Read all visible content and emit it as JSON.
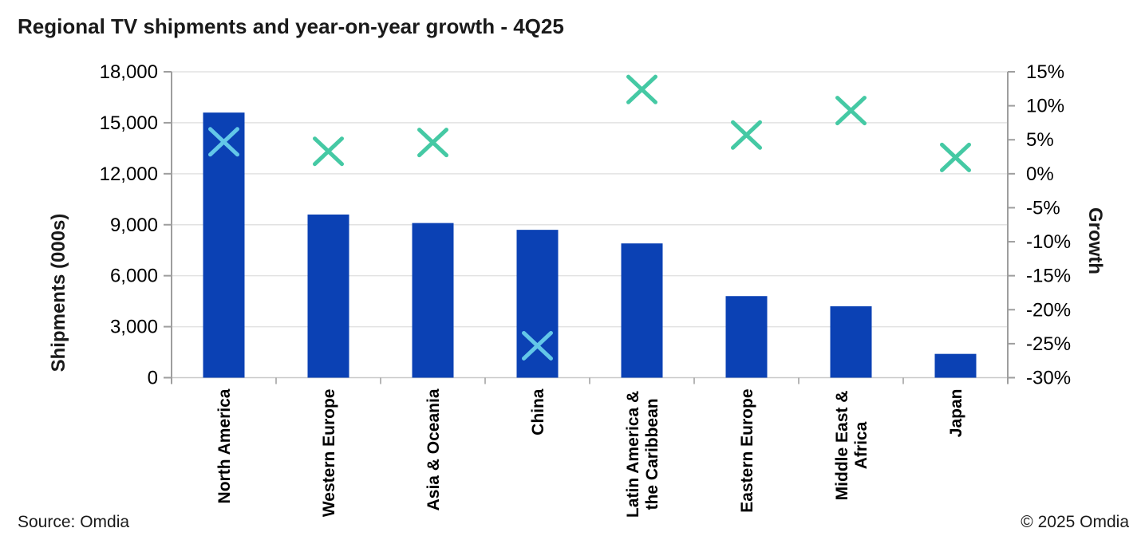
{
  "title": "Regional TV shipments and year-on-year growth - 4Q25",
  "source": "Source: Omdia",
  "copyright": "© 2025 Omdia",
  "chart_data": {
    "type": "bar",
    "title": "Regional TV shipments and year-on-year growth - 4Q25",
    "categories": [
      "North America",
      "Western Europe",
      "Asia & Oceania",
      "China",
      "Latin America &\nthe Caribbean",
      "Eastern Europe",
      "Middle East &\nAfrica",
      "Japan"
    ],
    "series": [
      {
        "name": "Shipments (000s)",
        "type": "bar",
        "axis": "left",
        "values": [
          15600,
          9600,
          9100,
          8700,
          7900,
          4800,
          4200,
          1400
        ]
      },
      {
        "name": "Growth",
        "type": "scatter",
        "marker": "x",
        "axis": "right",
        "values": [
          4.7,
          3.3,
          4.6,
          -25.3,
          12.4,
          5.7,
          9.3,
          2.4
        ]
      }
    ],
    "left_axis": {
      "title": "Shipments (000s)",
      "min": 0,
      "max": 18000,
      "step": 3000,
      "tick_labels": [
        "18,000",
        "15,000",
        "12,000",
        "9,000",
        "6,000",
        "3,000",
        "0"
      ]
    },
    "right_axis": {
      "title": "Growth",
      "min": -30,
      "max": 15,
      "step": 5,
      "tick_labels": [
        "15%",
        "10%",
        "5%",
        "0%",
        "-5%",
        "-10%",
        "-15%",
        "-20%",
        "-25%",
        "-30%"
      ]
    },
    "grid": true,
    "legend": "none",
    "colors": {
      "bar": "#0B41B4",
      "marker": "#45C9A4",
      "marker_over_bar": "#63C7E8",
      "grid": "#E2E2E2",
      "axis": "#9E9E9E",
      "baseline": "#C9C9C9",
      "text": "#000000"
    }
  }
}
